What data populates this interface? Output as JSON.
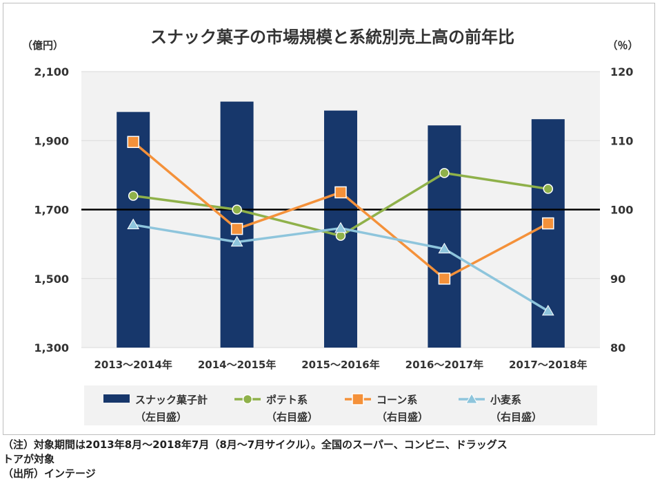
{
  "chart_data": {
    "type": "bar+line",
    "title": "スナック菓子の市場規模と系統別売上高の前年比",
    "y_left_label": "（億円）",
    "y_right_label": "（％）",
    "y_left_range": [
      1300,
      2100
    ],
    "y_left_ticks": [
      "1,300",
      "1,500",
      "1,700",
      "1,900",
      "2,100"
    ],
    "y_left_tick_values": [
      1300,
      1500,
      1700,
      1900,
      2100
    ],
    "y_right_range": [
      80,
      120
    ],
    "y_right_ticks": [
      "80",
      "90",
      "100",
      "110",
      "120"
    ],
    "y_right_tick_values": [
      80,
      90,
      100,
      110,
      120
    ],
    "reference_line": 100,
    "categories": [
      "2013～2014年",
      "2014～2015年",
      "2015～2016年",
      "2016～2017年",
      "2017～2018年"
    ],
    "bar_series": {
      "name": "スナック菓子計",
      "axis_note": "（左目盛）",
      "axis": "left",
      "color": "#17376b",
      "values": [
        1983,
        2013,
        1987,
        1944,
        1962
      ]
    },
    "line_series": [
      {
        "name": "ポテト系",
        "axis_note": "（右目盛）",
        "axis": "right",
        "color": "#8fb14a",
        "marker": "circle",
        "values": [
          102.0,
          100.0,
          96.2,
          105.3,
          103.0
        ]
      },
      {
        "name": "コーン系",
        "axis_note": "（右目盛）",
        "axis": "right",
        "color": "#f4913a",
        "marker": "square",
        "values": [
          109.8,
          97.2,
          102.5,
          90.0,
          98.0
        ]
      },
      {
        "name": "小麦系",
        "axis_note": "（右目盛）",
        "axis": "right",
        "color": "#8ec5dc",
        "marker": "triangle",
        "values": [
          97.8,
          95.3,
          97.3,
          94.3,
          85.3
        ]
      }
    ],
    "grid": true,
    "legend_placement": "bottom"
  },
  "notes": {
    "line1": "（注）対象期間は2013年8月～2018年7月（8月～7月サイクル）。全国のスーパー、コンビニ、ドラッグス",
    "line2": "トアが対象",
    "source": "（出所）インテージ"
  }
}
